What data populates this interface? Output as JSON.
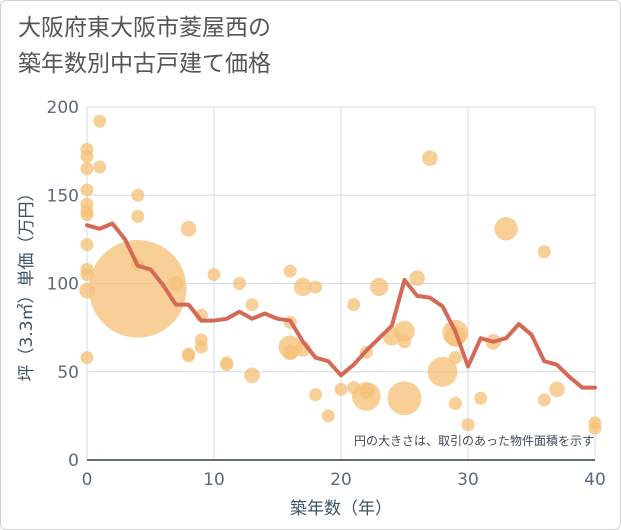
{
  "chart_data": {
    "type": "scatter",
    "title_lines": [
      "大阪府東大阪市菱屋西の",
      "築年数別中古戸建て価格"
    ],
    "xlabel": "築年数（年）",
    "ylabel": "坪（3.3㎡）単価（万円）",
    "xlim": [
      0,
      40
    ],
    "ylim": [
      0,
      200
    ],
    "xticks": [
      "0",
      "10",
      "20",
      "30",
      "40"
    ],
    "yticks": [
      "0",
      "50",
      "100",
      "150",
      "200"
    ],
    "grid": true,
    "note": "円の大きさは、取引のあった物件面積を示す",
    "colors": {
      "bubble": "#f5c27a",
      "line": "#d46a55",
      "grid": "#d0dce6",
      "axis": "#2f3f4f"
    },
    "bubbles": [
      {
        "x": 0,
        "y": 176,
        "s": 1
      },
      {
        "x": 0,
        "y": 172,
        "s": 1
      },
      {
        "x": 0,
        "y": 165,
        "s": 1
      },
      {
        "x": 0,
        "y": 153,
        "s": 1
      },
      {
        "x": 0,
        "y": 145,
        "s": 1
      },
      {
        "x": 0,
        "y": 141,
        "s": 1
      },
      {
        "x": 0,
        "y": 139,
        "s": 1
      },
      {
        "x": 0,
        "y": 122,
        "s": 1
      },
      {
        "x": 0,
        "y": 108,
        "s": 1
      },
      {
        "x": 0,
        "y": 105,
        "s": 1
      },
      {
        "x": 0,
        "y": 96,
        "s": 1.2
      },
      {
        "x": 0,
        "y": 58,
        "s": 1
      },
      {
        "x": 1,
        "y": 192,
        "s": 1
      },
      {
        "x": 1,
        "y": 166,
        "s": 1
      },
      {
        "x": 4,
        "y": 150,
        "s": 1
      },
      {
        "x": 4,
        "y": 138,
        "s": 1
      },
      {
        "x": 4,
        "y": 111,
        "s": 1
      },
      {
        "x": 4,
        "y": 97,
        "s": 7.5
      },
      {
        "x": 7,
        "y": 100,
        "s": 1.2
      },
      {
        "x": 8,
        "y": 131,
        "s": 1.2
      },
      {
        "x": 8,
        "y": 60,
        "s": 1
      },
      {
        "x": 8,
        "y": 59,
        "s": 1
      },
      {
        "x": 9,
        "y": 82,
        "s": 1
      },
      {
        "x": 9,
        "y": 68,
        "s": 1
      },
      {
        "x": 9,
        "y": 64,
        "s": 1
      },
      {
        "x": 10,
        "y": 105,
        "s": 1
      },
      {
        "x": 11,
        "y": 55,
        "s": 1
      },
      {
        "x": 11,
        "y": 54,
        "s": 1
      },
      {
        "x": 12,
        "y": 100,
        "s": 1
      },
      {
        "x": 13,
        "y": 88,
        "s": 1
      },
      {
        "x": 13,
        "y": 48,
        "s": 1.2
      },
      {
        "x": 16,
        "y": 107,
        "s": 1
      },
      {
        "x": 16,
        "y": 78,
        "s": 1
      },
      {
        "x": 16,
        "y": 64,
        "s": 1.8
      },
      {
        "x": 16,
        "y": 61,
        "s": 1.2
      },
      {
        "x": 17,
        "y": 98,
        "s": 1.4
      },
      {
        "x": 17,
        "y": 63,
        "s": 1.2
      },
      {
        "x": 18,
        "y": 98,
        "s": 1
      },
      {
        "x": 18,
        "y": 37,
        "s": 1
      },
      {
        "x": 19,
        "y": 25,
        "s": 1
      },
      {
        "x": 20,
        "y": 40,
        "s": 1
      },
      {
        "x": 21,
        "y": 88,
        "s": 1
      },
      {
        "x": 21,
        "y": 41,
        "s": 1
      },
      {
        "x": 22,
        "y": 61,
        "s": 1
      },
      {
        "x": 22,
        "y": 39,
        "s": 1.2
      },
      {
        "x": 22,
        "y": 36,
        "s": 2.2
      },
      {
        "x": 23,
        "y": 98,
        "s": 1.4
      },
      {
        "x": 24,
        "y": 70,
        "s": 1.4
      },
      {
        "x": 25,
        "y": 73,
        "s": 1.6
      },
      {
        "x": 25,
        "y": 67,
        "s": 1
      },
      {
        "x": 25,
        "y": 35,
        "s": 2.6
      },
      {
        "x": 26,
        "y": 103,
        "s": 1.2
      },
      {
        "x": 27,
        "y": 171,
        "s": 1.2
      },
      {
        "x": 28,
        "y": 50,
        "s": 2.3
      },
      {
        "x": 29,
        "y": 72,
        "s": 2
      },
      {
        "x": 29,
        "y": 70,
        "s": 1.6
      },
      {
        "x": 29,
        "y": 58,
        "s": 1
      },
      {
        "x": 29,
        "y": 32,
        "s": 1
      },
      {
        "x": 30,
        "y": 20,
        "s": 1
      },
      {
        "x": 31,
        "y": 35,
        "s": 1
      },
      {
        "x": 32,
        "y": 67,
        "s": 1.2
      },
      {
        "x": 33,
        "y": 131,
        "s": 1.8
      },
      {
        "x": 36,
        "y": 118,
        "s": 1
      },
      {
        "x": 36,
        "y": 34,
        "s": 1
      },
      {
        "x": 37,
        "y": 40,
        "s": 1.2
      },
      {
        "x": 40,
        "y": 21,
        "s": 1
      },
      {
        "x": 40,
        "y": 18,
        "s": 1
      }
    ],
    "trend": {
      "x": [
        0,
        1,
        2,
        3,
        4,
        5,
        6,
        7,
        8,
        9,
        10,
        11,
        12,
        13,
        14,
        15,
        16,
        17,
        18,
        19,
        20,
        21,
        22,
        23,
        24,
        25,
        26,
        27,
        28,
        29,
        30,
        31,
        32,
        33,
        34,
        35,
        36,
        37,
        38,
        39,
        40
      ],
      "y": [
        133,
        131,
        134,
        125,
        110,
        108,
        99,
        88,
        88,
        79,
        79,
        80,
        84,
        80,
        83,
        80,
        79,
        67,
        58,
        56,
        48,
        54,
        62,
        69,
        76,
        102,
        93,
        92,
        87,
        73,
        53,
        69,
        67,
        69,
        77,
        71,
        56,
        54,
        47,
        41,
        41
      ]
    }
  }
}
